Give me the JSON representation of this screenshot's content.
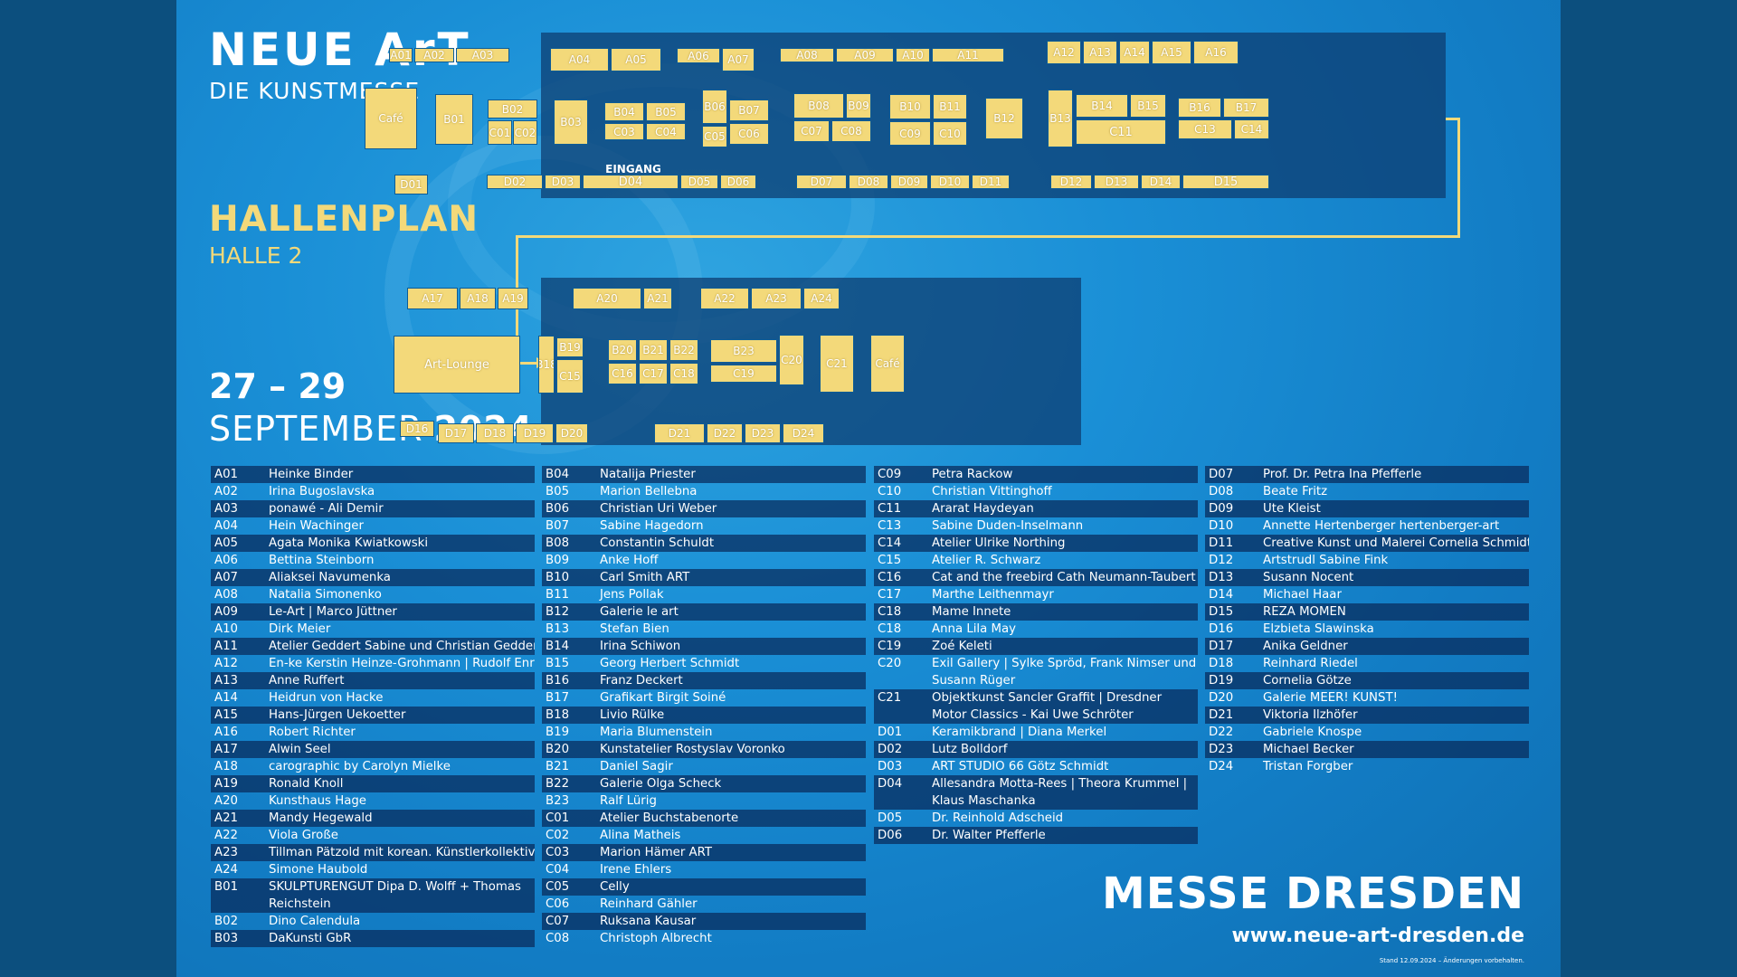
{
  "header": {
    "brand_title": "NEUE ArT",
    "brand_subtitle": "DIE KUNSTMESSE",
    "plan_title": "HALLENPLAN",
    "plan_subtitle": "HALLE 2",
    "date_days": "27 – 29",
    "date_month": "SEPTEMBER",
    "date_year": "2024"
  },
  "footer": {
    "organizer": "MESSE DRESDEN",
    "url": "www.neue-art-dresden.de",
    "note": "Stand 12.09.2024 – Änderungen vorbehalten."
  },
  "colors": {
    "accent": "#f3d97a",
    "background": "#1a8fd6",
    "panel": "#0c3a6e"
  },
  "map": {
    "entrance_label": "EINGANG",
    "upper_booths": [
      "A01",
      "A02",
      "A03",
      "A04",
      "A05",
      "A06",
      "A07",
      "A08",
      "A09",
      "A10",
      "A11",
      "A12",
      "A13",
      "A14",
      "A15",
      "A16",
      "Café",
      "B01",
      "B02",
      "C01",
      "C02",
      "B03",
      "B04",
      "B05",
      "C03",
      "C04",
      "B06",
      "C05",
      "B07",
      "C06",
      "B08",
      "B09",
      "C07",
      "C08",
      "B10",
      "B11",
      "C09",
      "C10",
      "B12",
      "B13",
      "B14",
      "B15",
      "C11",
      "B16",
      "B17",
      "C13",
      "C14",
      "D01",
      "D02",
      "D03",
      "D04",
      "D05",
      "D06",
      "D07",
      "D08",
      "D09",
      "D10",
      "D11",
      "D12",
      "D13",
      "D14",
      "D15"
    ],
    "lower_booths": [
      "A17",
      "A18",
      "A19",
      "A20",
      "A21",
      "A22",
      "A23",
      "A24",
      "Art-Lounge",
      "B18",
      "B19",
      "C15",
      "B20",
      "B21",
      "B22",
      "C16",
      "C17",
      "C18",
      "B23",
      "C19",
      "C20",
      "C21",
      "Café",
      "D16",
      "D17",
      "D18",
      "D19",
      "D20",
      "D21",
      "D22",
      "D23",
      "D24"
    ]
  },
  "exhibitors": [
    [
      {
        "code": "A01",
        "name": "Heinke Binder"
      },
      {
        "code": "A02",
        "name": "Irina Bugoslavska"
      },
      {
        "code": "A03",
        "name": "ponawé - Ali Demir"
      },
      {
        "code": "A04",
        "name": "Hein Wachinger"
      },
      {
        "code": "A05",
        "name": "Agata Monika Kwiatkowski"
      },
      {
        "code": "A06",
        "name": "Bettina Steinborn"
      },
      {
        "code": "A07",
        "name": "Aliaksei Navumenka"
      },
      {
        "code": "A08",
        "name": "Natalia Simonenko"
      },
      {
        "code": "A09",
        "name": "Le-Art | Marco Jüttner"
      },
      {
        "code": "A10",
        "name": "Dirk Meier"
      },
      {
        "code": "A11",
        "name": "Atelier Geddert Sabine und Christian Geddert"
      },
      {
        "code": "A12",
        "name": "En-ke Kerstin Heinze-Grohmann | Rudolf Enrico"
      },
      {
        "code": "A13",
        "name": "Anne Ruffert"
      },
      {
        "code": "A14",
        "name": "Heidrun von Hacke"
      },
      {
        "code": "A15",
        "name": "Hans-Jürgen Uekoetter"
      },
      {
        "code": "A16",
        "name": "Robert Richter"
      },
      {
        "code": "A17",
        "name": "Alwin Seel"
      },
      {
        "code": "A18",
        "name": "carographic by Carolyn Mielke"
      },
      {
        "code": "A19",
        "name": "Ronald Knoll"
      },
      {
        "code": "A20",
        "name": "Kunsthaus Hage"
      },
      {
        "code": "A21",
        "name": "Mandy Hegewald"
      },
      {
        "code": "A22",
        "name": "Viola Große"
      },
      {
        "code": "A23",
        "name": "Tillman Pätzold mit korean. Künstlerkollektiv"
      },
      {
        "code": "A24",
        "name": "Simone Haubold"
      },
      {
        "code": "B01",
        "name": "SKULPTURENGUT Dipa D. Wolff + Thomas Reichstein"
      },
      {
        "code": "B02",
        "name": "Dino Calendula"
      },
      {
        "code": "B03",
        "name": "DaKunsti GbR"
      }
    ],
    [
      {
        "code": "B04",
        "name": "Natalija Priester"
      },
      {
        "code": "B05",
        "name": "Marion Bellebna"
      },
      {
        "code": "B06",
        "name": "Christian Uri Weber"
      },
      {
        "code": "B07",
        "name": "Sabine Hagedorn"
      },
      {
        "code": "B08",
        "name": "Constantin Schuldt"
      },
      {
        "code": "B09",
        "name": "Anke Hoff"
      },
      {
        "code": "B10",
        "name": "Carl Smith ART"
      },
      {
        "code": "B11",
        "name": "Jens Pollak"
      },
      {
        "code": "B12",
        "name": "Galerie le art"
      },
      {
        "code": "B13",
        "name": "Stefan Bien"
      },
      {
        "code": "B14",
        "name": "Irina Schiwon"
      },
      {
        "code": "B15",
        "name": "Georg Herbert Schmidt"
      },
      {
        "code": "B16",
        "name": "Franz Deckert"
      },
      {
        "code": "B17",
        "name": "Grafikart Birgit Soiné"
      },
      {
        "code": "B18",
        "name": "Livio Rülke"
      },
      {
        "code": "B19",
        "name": "Maria Blumenstein"
      },
      {
        "code": "B20",
        "name": "Kunstatelier Rostyslav Voronko"
      },
      {
        "code": "B21",
        "name": "Daniel Sagir"
      },
      {
        "code": "B22",
        "name": "Galerie Olga Scheck"
      },
      {
        "code": "B23",
        "name": "Ralf Lürig"
      },
      {
        "code": "C01",
        "name": "Atelier Buchstabenorte"
      },
      {
        "code": "C02",
        "name": "Alina Matheis"
      },
      {
        "code": "C03",
        "name": "Marion Hämer ART"
      },
      {
        "code": "C04",
        "name": "Irene Ehlers"
      },
      {
        "code": "C05",
        "name": "Celly"
      },
      {
        "code": "C06",
        "name": "Reinhard Gähler"
      },
      {
        "code": "C07",
        "name": "Ruksana Kausar"
      },
      {
        "code": "C08",
        "name": "Christoph Albrecht"
      }
    ],
    [
      {
        "code": "C09",
        "name": "Petra Rackow"
      },
      {
        "code": "C10",
        "name": "Christian Vittinghoff"
      },
      {
        "code": "C11",
        "name": "Ararat Haydeyan"
      },
      {
        "code": "C13",
        "name": "Sabine Duden-Inselmann"
      },
      {
        "code": "C14",
        "name": "Atelier Ulrike Northing"
      },
      {
        "code": "C15",
        "name": "Atelier R. Schwarz"
      },
      {
        "code": "C16",
        "name": "Cat and the freebird Cath Neumann-Taubert"
      },
      {
        "code": "C17",
        "name": "Marthe Leithenmayr"
      },
      {
        "code": "C18",
        "name": "Mame Innete"
      },
      {
        "code": "C18",
        "name": "Anna Lila May"
      },
      {
        "code": "C19",
        "name": "Zoé Keleti"
      },
      {
        "code": "C20",
        "name": "Exil Gallery | Sylke Spröd, Frank Nimser und Susann Rüger"
      },
      {
        "code": "C21",
        "name": "Objektkunst Sancler Graffit | Dresdner Motor Classics - Kai Uwe Schröter"
      },
      {
        "code": "D01",
        "name": "Keramikbrand | Diana Merkel"
      },
      {
        "code": "D02",
        "name": "Lutz Bolldorf"
      },
      {
        "code": "D03",
        "name": "ART STUDIO 66 Götz Schmidt"
      },
      {
        "code": "D04",
        "name": "Allesandra Motta-Rees | Theora Krummel | Klaus Maschanka"
      },
      {
        "code": "D05",
        "name": "Dr. Reinhold Adscheid"
      },
      {
        "code": "D06",
        "name": "Dr. Walter Pfefferle"
      }
    ],
    [
      {
        "code": "D07",
        "name": "Prof. Dr. Petra Ina Pfefferle"
      },
      {
        "code": "D08",
        "name": "Beate Fritz"
      },
      {
        "code": "D09",
        "name": "Ute Kleist"
      },
      {
        "code": "D10",
        "name": "Annette Hertenberger hertenberger-art"
      },
      {
        "code": "D11",
        "name": "Creative Kunst und Malerei Cornelia Schmidt"
      },
      {
        "code": "D12",
        "name": "Artstrudl Sabine Fink"
      },
      {
        "code": "D13",
        "name": "Susann Nocent"
      },
      {
        "code": "D14",
        "name": "Michael Haar"
      },
      {
        "code": "D15",
        "name": "REZA MOMEN"
      },
      {
        "code": "D16",
        "name": "Elzbieta Slawinska"
      },
      {
        "code": "D17",
        "name": "Anika Geldner"
      },
      {
        "code": "D18",
        "name": "Reinhard Riedel"
      },
      {
        "code": "D19",
        "name": "Cornelia Götze"
      },
      {
        "code": "D20",
        "name": "Galerie MEER! KUNST!"
      },
      {
        "code": "D21",
        "name": "Viktoria Ilzhöfer"
      },
      {
        "code": "D22",
        "name": "Gabriele Knospe"
      },
      {
        "code": "D23",
        "name": "Michael Becker"
      },
      {
        "code": "D24",
        "name": "Tristan Forgber"
      }
    ]
  ]
}
